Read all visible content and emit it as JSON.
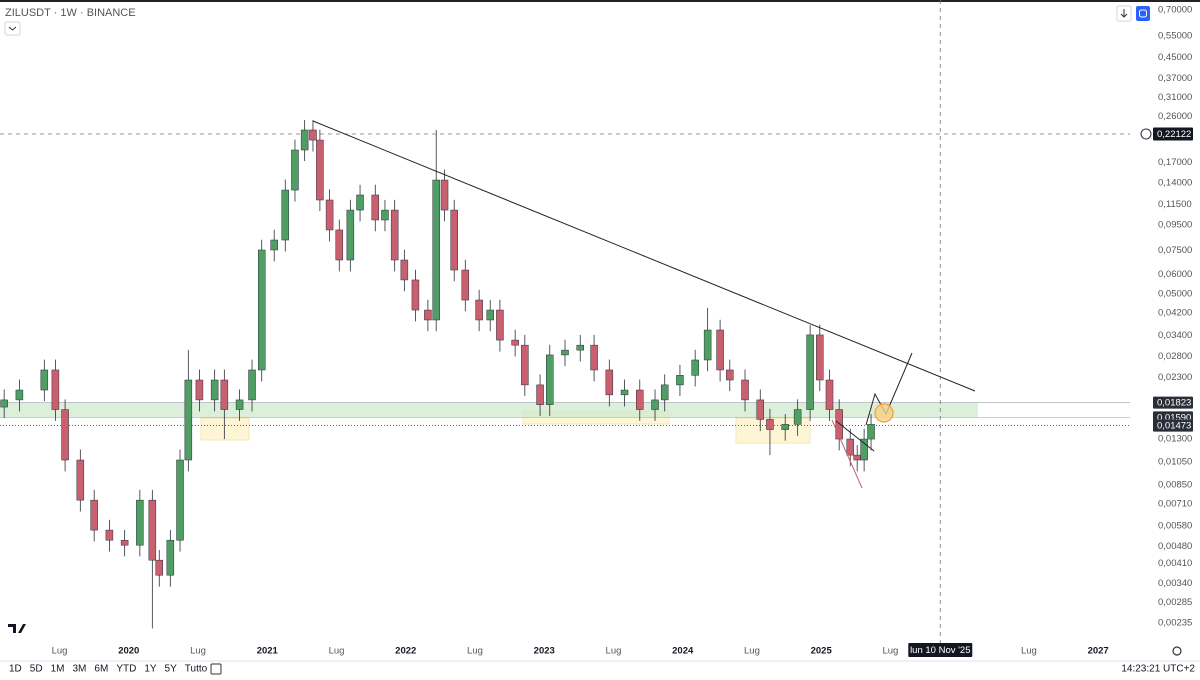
{
  "chart_data": {
    "type": "candlestick",
    "title": "ZILUSDT · 1W · BINANCE",
    "x": [
      2019.1,
      2019.21,
      2019.39,
      2019.47,
      2019.54,
      2019.65,
      2019.75,
      2019.86,
      2019.97,
      2020.08,
      2020.17,
      2020.22,
      2020.3,
      2020.37,
      2020.43,
      2020.51,
      2020.62,
      2020.69,
      2020.8,
      2020.89,
      2020.96,
      2021.05,
      2021.13,
      2021.2,
      2021.27,
      2021.33,
      2021.38,
      2021.45,
      2021.52,
      2021.6,
      2021.67,
      2021.78,
      2021.85,
      2021.92,
      2021.99,
      2022.07,
      2022.16,
      2022.22,
      2022.28,
      2022.35,
      2022.43,
      2022.53,
      2022.61,
      2022.68,
      2022.79,
      2022.86,
      2022.97,
      2023.04,
      2023.15,
      2023.26,
      2023.36,
      2023.47,
      2023.58,
      2023.69,
      2023.8,
      2023.87,
      2023.98,
      2024.09,
      2024.18,
      2024.27,
      2024.34,
      2024.45,
      2024.56,
      2024.63,
      2024.74,
      2024.83,
      2024.92,
      2024.99,
      2025.06,
      2025.13,
      2025.21,
      2025.26,
      2025.31,
      2025.36
    ],
    "open": [
      0.0175,
      0.0187,
      0.0205,
      0.0247,
      0.0171,
      0.0107,
      0.00737,
      0.00558,
      0.00508,
      0.00485,
      0.00737,
      0.00422,
      0.00367,
      0.00508,
      0.0107,
      0.0225,
      0.0187,
      0.0225,
      0.0171,
      0.0187,
      0.0247,
      0.0753,
      0.0826,
      0.1314,
      0.1906,
      0.2296,
      0.209,
      0.1198,
      0.0907,
      0.0686,
      0.1091,
      0.1255,
      0.0995,
      0.1091,
      0.0686,
      0.057,
      0.0431,
      0.0393,
      0.1442,
      0.1091,
      0.0625,
      0.0473,
      0.0393,
      0.0431,
      0.0326,
      0.0311,
      0.0215,
      0.0179,
      0.0284,
      0.0297,
      0.0311,
      0.0247,
      0.0196,
      0.0205,
      0.0171,
      0.0187,
      0.0215,
      0.0235,
      0.0271,
      0.0358,
      0.0247,
      0.0225,
      0.0187,
      0.0156,
      0.0142,
      0.0149,
      0.0171,
      0.0342,
      0.0225,
      0.0171,
      0.013,
      0.0112,
      0.0107,
      0.013
    ],
    "high": [
      0.0206,
      0.0226,
      0.0272,
      0.0272,
      0.0188,
      0.0118,
      0.00811,
      0.00614,
      0.00559,
      0.00811,
      0.00811,
      0.00464,
      0.00559,
      0.0118,
      0.0297,
      0.0248,
      0.0248,
      0.0248,
      0.0206,
      0.0272,
      0.0828,
      0.0909,
      0.145,
      0.21,
      0.252,
      0.252,
      0.23,
      0.132,
      0.0998,
      0.12,
      0.138,
      0.138,
      0.12,
      0.12,
      0.0755,
      0.0627,
      0.0474,
      0.2296,
      0.159,
      0.12,
      0.0688,
      0.052,
      0.0474,
      0.0474,
      0.0359,
      0.0342,
      0.0237,
      0.0312,
      0.0327,
      0.0342,
      0.0342,
      0.0272,
      0.0226,
      0.0226,
      0.0206,
      0.0237,
      0.0259,
      0.0298,
      0.044,
      0.0394,
      0.0272,
      0.0248,
      0.0206,
      0.0172,
      0.0164,
      0.0188,
      0.0375,
      0.0376,
      0.0248,
      0.0188,
      0.0143,
      0.0123,
      0.0143,
      0.0164
    ],
    "low": [
      0.0158,
      0.0168,
      0.0185,
      0.0154,
      0.00963,
      0.00663,
      0.00502,
      0.00457,
      0.00437,
      0.00437,
      0.00224,
      0.0033,
      0.0033,
      0.00457,
      0.00963,
      0.0168,
      0.0168,
      0.013,
      0.0154,
      0.0168,
      0.0222,
      0.0678,
      0.0743,
      0.118,
      0.172,
      0.188,
      0.108,
      0.0816,
      0.0617,
      0.0617,
      0.0982,
      0.0896,
      0.0896,
      0.0617,
      0.0513,
      0.0388,
      0.0354,
      0.0354,
      0.0982,
      0.0563,
      0.0426,
      0.0354,
      0.0354,
      0.0293,
      0.028,
      0.0194,
      0.0161,
      0.0161,
      0.0256,
      0.0267,
      0.0222,
      0.0176,
      0.0176,
      0.0154,
      0.0154,
      0.0168,
      0.0194,
      0.0212,
      0.0244,
      0.0222,
      0.0203,
      0.0168,
      0.014,
      0.0112,
      0.0128,
      0.0134,
      0.0154,
      0.0203,
      0.0154,
      0.0117,
      0.0101,
      0.00963,
      0.00963,
      0.0117
    ],
    "close": [
      0.0187,
      0.0205,
      0.0247,
      0.0171,
      0.0107,
      0.00737,
      0.00558,
      0.00508,
      0.00485,
      0.00737,
      0.00422,
      0.00367,
      0.00508,
      0.0107,
      0.0225,
      0.0187,
      0.0225,
      0.0171,
      0.0187,
      0.0247,
      0.0753,
      0.0826,
      0.1314,
      0.1906,
      0.2296,
      0.209,
      0.1198,
      0.0907,
      0.0686,
      0.1091,
      0.1255,
      0.0995,
      0.1091,
      0.0686,
      0.057,
      0.0431,
      0.0393,
      0.1442,
      0.1091,
      0.0625,
      0.0473,
      0.0393,
      0.0431,
      0.0326,
      0.0311,
      0.0215,
      0.0179,
      0.0284,
      0.0297,
      0.0311,
      0.0247,
      0.0196,
      0.0205,
      0.0171,
      0.0187,
      0.0215,
      0.0235,
      0.0271,
      0.0358,
      0.0247,
      0.0225,
      0.0187,
      0.0156,
      0.0142,
      0.0149,
      0.0171,
      0.0342,
      0.0225,
      0.0171,
      0.013,
      0.0112,
      0.0107,
      0.013,
      0.0149
    ],
    "up_color": "#4f9e63",
    "down_color": "#c9606f",
    "log_scale": true,
    "grid": false,
    "xlim": [
      2019.07,
      2027.23
    ],
    "ylim": [
      0.00201,
      0.768
    ],
    "xticks": [
      {
        "value": 2019.5,
        "label": "Lug"
      },
      2020,
      {
        "value": 2020.5,
        "label": "Lug"
      },
      2021,
      {
        "value": 2021.5,
        "label": "Lug"
      },
      2022,
      {
        "value": 2022.5,
        "label": "Lug"
      },
      2023,
      {
        "value": 2023.5,
        "label": "Lug"
      },
      2024,
      {
        "value": 2024.5,
        "label": "Lug"
      },
      2025,
      {
        "value": 2025.5,
        "label": "Lug"
      },
      {
        "value": 2026.5,
        "label": "Lug"
      },
      2027
    ],
    "yticks": [
      {
        "value": 0.7,
        "label": "0,70000"
      },
      {
        "value": 0.55,
        "label": "0,55000"
      },
      {
        "value": 0.45,
        "label": "0,45000"
      },
      {
        "value": 0.37,
        "label": "0,37000"
      },
      {
        "value": 0.31,
        "label": "0,31000"
      },
      {
        "value": 0.26,
        "label": "0,26000"
      },
      {
        "value": 0.17,
        "label": "0,17000"
      },
      {
        "value": 0.14,
        "label": "0,14000"
      },
      {
        "value": 0.115,
        "label": "0,11500"
      },
      {
        "value": 0.095,
        "label": "0,09500"
      },
      {
        "value": 0.075,
        "label": "0,07500"
      },
      {
        "value": 0.06,
        "label": "0,06000"
      },
      {
        "value": 0.05,
        "label": "0,05000"
      },
      {
        "value": 0.042,
        "label": "0,04200"
      },
      {
        "value": 0.034,
        "label": "0,03400"
      },
      {
        "value": 0.028,
        "label": "0,02800"
      },
      {
        "value": 0.023,
        "label": "0,02300"
      },
      {
        "value": 0.013,
        "label": "0,01300"
      },
      {
        "value": 0.0105,
        "label": "0,01050"
      },
      {
        "value": 0.0085,
        "label": "0,00850"
      },
      {
        "value": 0.0071,
        "label": "0,00710"
      },
      {
        "value": 0.0058,
        "label": "0,00580"
      },
      {
        "value": 0.0048,
        "label": "0,00480"
      },
      {
        "value": 0.0041,
        "label": "0,00410"
      },
      {
        "value": 0.0034,
        "label": "0,00340"
      },
      {
        "value": 0.00285,
        "label": "0,00285"
      },
      {
        "value": 0.00235,
        "label": "0,00235"
      }
    ],
    "price_labels": [
      {
        "value": 0.01823,
        "label": "0,01823"
      },
      {
        "value": 0.0159,
        "label": "0,01590"
      },
      {
        "value": 0.01473,
        "label": "0,01473"
      }
    ],
    "crosshair": {
      "price": {
        "value": 0.22122,
        "label": "0,22122"
      },
      "time": 2025.86,
      "time_label": "lun 10 Nov '25"
    }
  },
  "toolbar": {
    "ranges": [
      "1D",
      "5D",
      "1M",
      "3M",
      "6M",
      "YTD",
      "1Y",
      "5Y",
      "Tutto"
    ],
    "clock": "14:23:21 UTC+2"
  }
}
